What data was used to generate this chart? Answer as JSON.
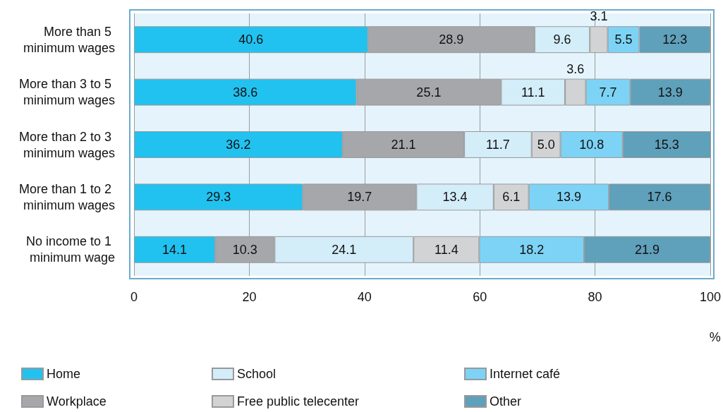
{
  "chart_data": {
    "type": "bar",
    "orientation": "horizontal",
    "stacked": true,
    "categories": [
      "More than 5 minimum wages",
      "More than 3 to 5 minimum wages",
      "More than 2 to 3 minimum wages",
      "More than 1 to 2 minimum wages",
      "No income to 1 minimum wage"
    ],
    "xlabel": "%",
    "xlim": [
      0,
      100.1
    ],
    "xticks": [
      0,
      20,
      40,
      60,
      80,
      100
    ],
    "grid": "x",
    "legend": "bottom",
    "series": [
      {
        "name": "Home",
        "color": "#21c2f0",
        "values": [
          40.6,
          38.6,
          36.2,
          29.3,
          14.1
        ],
        "value_labels": [
          "40.6",
          "38.6",
          "36.2",
          "29.3",
          "14.1"
        ]
      },
      {
        "name": "Workplace",
        "color": "#a6a7aa",
        "values": [
          28.9,
          25.1,
          21.1,
          19.7,
          10.3
        ],
        "value_labels": [
          "28.9",
          "25.1",
          "21.1",
          "19.7",
          "10.3"
        ]
      },
      {
        "name": "School",
        "color": "#d3edf9",
        "values": [
          9.6,
          11.1,
          11.7,
          13.4,
          24.1
        ],
        "value_labels": [
          "9.6",
          "11.1",
          "11.7",
          "13.4",
          "24.1"
        ]
      },
      {
        "name": "Free public telecenter",
        "color": "#d2d3d5",
        "values": [
          3.1,
          3.6,
          5.0,
          6.1,
          11.4
        ],
        "value_labels": [
          "3.1",
          "3.6",
          "5.0",
          "6.1",
          "11.4"
        ]
      },
      {
        "name": "Internet café",
        "color": "#7dd3f5",
        "values": [
          5.5,
          7.7,
          10.8,
          13.9,
          18.2
        ],
        "value_labels": [
          "5.5",
          "7.7",
          "10.8",
          "13.9",
          "18.2"
        ]
      },
      {
        "name": "Other",
        "color": "#5fa0bb",
        "values": [
          12.3,
          13.9,
          15.3,
          17.6,
          21.9
        ],
        "value_labels": [
          "12.3",
          "13.9",
          "15.3",
          "17.6",
          "21.9"
        ]
      }
    ]
  }
}
